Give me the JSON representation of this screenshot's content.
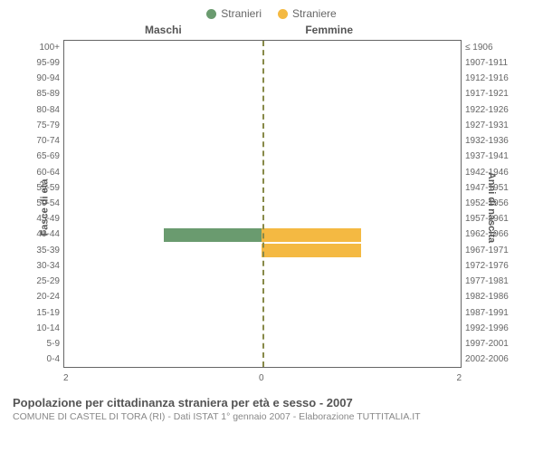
{
  "legend": {
    "male": {
      "label": "Stranieri",
      "color": "#6a9b6f"
    },
    "female": {
      "label": "Straniere",
      "color": "#f4b942"
    }
  },
  "columns": {
    "left": "Maschi",
    "right": "Femmine"
  },
  "axis_titles": {
    "left": "Fasce di età",
    "right": "Anni di nascita"
  },
  "xaxis": {
    "min": 0,
    "max": 2,
    "ticks": [
      0,
      2
    ]
  },
  "bar_colors": {
    "male": "#6a9b6f",
    "female": "#f4b942"
  },
  "midline_color": "#888a49",
  "rows": [
    {
      "age": "100+",
      "birth": "≤ 1906",
      "m": 0,
      "f": 0
    },
    {
      "age": "95-99",
      "birth": "1907-1911",
      "m": 0,
      "f": 0
    },
    {
      "age": "90-94",
      "birth": "1912-1916",
      "m": 0,
      "f": 0
    },
    {
      "age": "85-89",
      "birth": "1917-1921",
      "m": 0,
      "f": 0
    },
    {
      "age": "80-84",
      "birth": "1922-1926",
      "m": 0,
      "f": 0
    },
    {
      "age": "75-79",
      "birth": "1927-1931",
      "m": 0,
      "f": 0
    },
    {
      "age": "70-74",
      "birth": "1932-1936",
      "m": 0,
      "f": 0
    },
    {
      "age": "65-69",
      "birth": "1937-1941",
      "m": 0,
      "f": 0
    },
    {
      "age": "60-64",
      "birth": "1942-1946",
      "m": 0,
      "f": 0
    },
    {
      "age": "55-59",
      "birth": "1947-1951",
      "m": 0,
      "f": 0
    },
    {
      "age": "50-54",
      "birth": "1952-1956",
      "m": 0,
      "f": 0
    },
    {
      "age": "45-49",
      "birth": "1957-1961",
      "m": 0,
      "f": 0
    },
    {
      "age": "40-44",
      "birth": "1962-1966",
      "m": 1,
      "f": 1
    },
    {
      "age": "35-39",
      "birth": "1967-1971",
      "m": 0,
      "f": 1
    },
    {
      "age": "30-34",
      "birth": "1972-1976",
      "m": 0,
      "f": 0
    },
    {
      "age": "25-29",
      "birth": "1977-1981",
      "m": 0,
      "f": 0
    },
    {
      "age": "20-24",
      "birth": "1982-1986",
      "m": 0,
      "f": 0
    },
    {
      "age": "15-19",
      "birth": "1987-1991",
      "m": 0,
      "f": 0
    },
    {
      "age": "10-14",
      "birth": "1992-1996",
      "m": 0,
      "f": 0
    },
    {
      "age": "5-9",
      "birth": "1997-2001",
      "m": 0,
      "f": 0
    },
    {
      "age": "0-4",
      "birth": "2002-2006",
      "m": 0,
      "f": 0
    }
  ],
  "caption": {
    "title": "Popolazione per cittadinanza straniera per età e sesso - 2007",
    "subtitle": "COMUNE DI CASTEL DI TORA (RI) - Dati ISTAT 1° gennaio 2007 - Elaborazione TUTTITALIA.IT"
  }
}
